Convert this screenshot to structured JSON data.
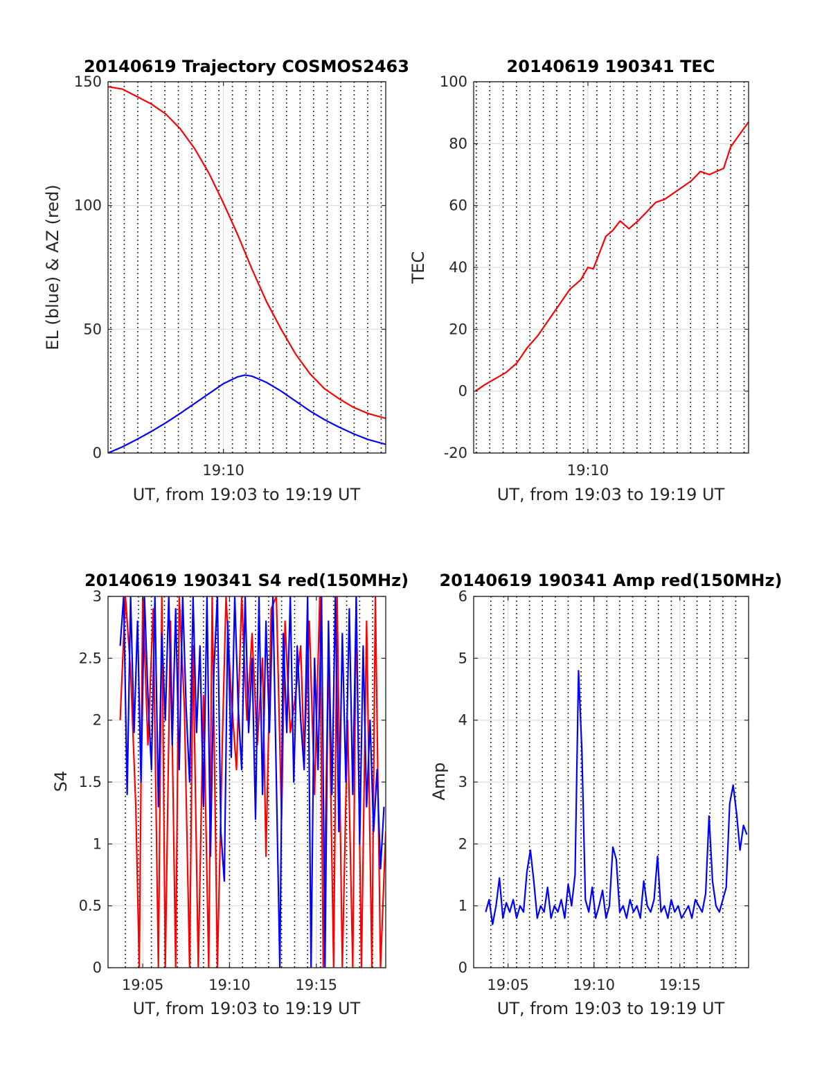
{
  "chart_data": [
    {
      "type": "line",
      "title": "20140619 Trajectory COSMOS2463",
      "xlabel": "UT, from 19:03 to 19:19 UT",
      "ylabel": "EL (blue) & AZ (red)",
      "x_unit": "minutes after 19:00 UT",
      "xlim": [
        3.6,
        19.0
      ],
      "ylim": [
        0,
        150
      ],
      "yticks": [
        0,
        50,
        100,
        150
      ],
      "ytick_labels": [
        "0",
        "50",
        "100",
        "150"
      ],
      "xticks": [
        10
      ],
      "xtick_labels": [
        "19:10"
      ],
      "grid": true,
      "series": [
        {
          "color": "#ff0000",
          "x": [
            3.6,
            4.4,
            5.2,
            6.0,
            6.8,
            7.6,
            8.4,
            9.2,
            10.0,
            10.8,
            11.6,
            12.4,
            13.2,
            14.0,
            14.8,
            15.6,
            16.4,
            17.2,
            18.0,
            19.0
          ],
          "y": [
            148,
            147,
            144,
            141,
            137,
            131,
            123,
            113,
            101,
            88,
            74,
            61,
            50,
            40,
            32,
            26,
            22,
            18.5,
            16,
            14
          ]
        },
        {
          "color": "#0000ff",
          "x": [
            3.6,
            4.4,
            5.2,
            6.0,
            6.8,
            7.6,
            8.4,
            9.2,
            10.0,
            10.8,
            11.2,
            11.6,
            12.4,
            13.2,
            14.0,
            14.8,
            15.6,
            16.4,
            17.2,
            18.0,
            19.0
          ],
          "y": [
            0,
            2.5,
            5.5,
            8.7,
            12.2,
            16,
            20,
            24,
            28,
            30.8,
            31.5,
            31,
            28.5,
            25,
            21,
            17,
            13.5,
            10.5,
            7.8,
            5.5,
            3.5
          ]
        }
      ]
    },
    {
      "type": "line",
      "title": "20140619 190341 TEC",
      "xlabel": "UT, from 19:03 to 19:19 UT",
      "ylabel": "TEC",
      "x_unit": "minutes after 19:00 UT",
      "xlim": [
        3.6,
        19.0
      ],
      "ylim": [
        -20,
        100
      ],
      "yticks": [
        -20,
        0,
        20,
        40,
        60,
        80,
        100
      ],
      "ytick_labels": [
        "-20",
        "0",
        "20",
        "40",
        "60",
        "80",
        "100"
      ],
      "xticks": [
        10
      ],
      "xtick_labels": [
        "19:10"
      ],
      "grid": true,
      "series": [
        {
          "color": "#ff0000",
          "x": [
            3.7,
            4.2,
            4.8,
            5.4,
            6.0,
            6.6,
            7.2,
            7.8,
            8.4,
            9.0,
            9.6,
            10.0,
            10.3,
            10.6,
            11.0,
            11.4,
            11.8,
            12.3,
            12.8,
            13.3,
            13.8,
            14.3,
            14.8,
            15.3,
            15.8,
            16.3,
            16.8,
            17.2,
            17.6,
            18.0,
            18.5,
            19.0
          ],
          "y": [
            0,
            2,
            4,
            6,
            9,
            14,
            18,
            23,
            28,
            33,
            36,
            40,
            39.5,
            44,
            50,
            52,
            55,
            52.5,
            55,
            58,
            61,
            62,
            64,
            66,
            68,
            71,
            70,
            71,
            72,
            79,
            83,
            87
          ]
        }
      ]
    },
    {
      "type": "line",
      "title": "20140619 190341 S4 red(150MHz)",
      "xlabel": "UT, from 19:03 to 19:19 UT",
      "ylabel": "S4",
      "x_unit": "minutes after 19:00 UT",
      "xlim": [
        3.0,
        19.0
      ],
      "ylim": [
        0,
        3
      ],
      "yticks": [
        0,
        0.5,
        1,
        1.5,
        2,
        2.5,
        3
      ],
      "ytick_labels": [
        "0",
        "0.5",
        "1",
        "1.5",
        "2",
        "2.5",
        "3"
      ],
      "xticks": [
        5,
        10,
        15
      ],
      "xtick_labels": [
        "19:05",
        "19:10",
        "19:15"
      ],
      "grid": true,
      "series": [
        {
          "color": "#ff0000",
          "x": [
            3.7,
            4.0,
            4.3,
            4.6,
            4.8,
            5.0,
            5.3,
            5.6,
            5.9,
            6.1,
            6.3,
            6.6,
            6.9,
            7.1,
            7.4,
            7.7,
            7.9,
            8.2,
            8.5,
            8.8,
            9.0,
            9.3,
            9.6,
            9.8,
            10.1,
            10.4,
            10.7,
            11.0,
            11.3,
            11.6,
            11.9,
            12.1,
            12.4,
            12.7,
            13.0,
            13.2,
            13.5,
            13.8,
            14.1,
            14.3,
            14.6,
            14.9,
            15.2,
            15.4,
            15.7,
            16.0,
            16.2,
            16.5,
            16.8,
            17.1,
            17.3,
            17.6,
            17.9,
            18.2,
            18.4,
            18.7,
            19.0
          ],
          "y": [
            2.0,
            3.0,
            2.4,
            1.3,
            0.0,
            3.0,
            1.8,
            2.9,
            0.0,
            3.0,
            0.0,
            2.8,
            0.0,
            3.0,
            2.1,
            0.0,
            2.6,
            0.0,
            2.2,
            0.0,
            3.0,
            0.0,
            1.9,
            3.0,
            2.2,
            1.6,
            3.0,
            2.0,
            2.7,
            1.8,
            2.5,
            0.9,
            2.9,
            3.0,
            1.2,
            2.8,
            1.9,
            2.2,
            2.6,
            1.7,
            2.8,
            1.4,
            3.0,
            0.0,
            2.6,
            0.0,
            3.0,
            0.0,
            2.0,
            0.0,
            3.0,
            0.0,
            2.8,
            0.0,
            3.0,
            0.0,
            1.1
          ]
        },
        {
          "color": "#0000ff",
          "x": [
            3.7,
            3.9,
            4.1,
            4.3,
            4.5,
            4.7,
            4.9,
            5.1,
            5.3,
            5.5,
            5.7,
            5.9,
            6.1,
            6.3,
            6.5,
            6.7,
            6.9,
            7.1,
            7.3,
            7.5,
            7.7,
            7.9,
            8.1,
            8.3,
            8.5,
            8.7,
            8.9,
            9.1,
            9.3,
            9.5,
            9.7,
            9.9,
            10.1,
            10.3,
            10.5,
            10.7,
            10.9,
            11.1,
            11.3,
            11.5,
            11.7,
            11.9,
            12.1,
            12.3,
            12.5,
            12.7,
            12.9,
            13.1,
            13.3,
            13.5,
            13.7,
            13.9,
            14.1,
            14.3,
            14.5,
            14.7,
            14.9,
            15.1,
            15.3,
            15.5,
            15.7,
            15.9,
            16.1,
            16.3,
            16.5,
            16.7,
            16.9,
            17.1,
            17.3,
            17.5,
            17.7,
            17.9,
            18.1,
            18.3,
            18.5,
            18.7,
            18.9
          ],
          "y": [
            2.6,
            3.0,
            1.4,
            3.0,
            1.9,
            2.8,
            1.5,
            3.0,
            2.2,
            1.6,
            3.0,
            1.3,
            2.7,
            2.0,
            3.0,
            1.8,
            2.9,
            1.6,
            3.0,
            2.1,
            1.5,
            3.0,
            1.9,
            2.6,
            1.3,
            3.0,
            0.9,
            2.4,
            3.0,
            1.1,
            0.7,
            2.8,
            1.7,
            3.0,
            2.1,
            1.6,
            3.0,
            1.9,
            2.5,
            1.2,
            3.0,
            1.4,
            2.8,
            1.9,
            3.0,
            1.5,
            0.0,
            2.7,
            1.9,
            3.0,
            1.5,
            2.6,
            2.0,
            1.6,
            3.0,
            0.0,
            2.5,
            1.6,
            3.0,
            0.0,
            2.8,
            1.4,
            3.0,
            1.1,
            2.7,
            1.5,
            2.9,
            1.4,
            3.0,
            1.0,
            2.6,
            1.3,
            2.0,
            1.1,
            1.6,
            0.8,
            1.3
          ]
        }
      ]
    },
    {
      "type": "line",
      "title": "20140619 190341 Amp red(150MHz)",
      "xlabel": "UT, from 19:03 to 19:19 UT",
      "ylabel": "Amp",
      "x_unit": "minutes after 19:00 UT",
      "xlim": [
        3.0,
        19.0
      ],
      "ylim": [
        0,
        6
      ],
      "yticks": [
        0,
        1,
        2,
        3,
        4,
        5,
        6
      ],
      "ytick_labels": [
        "0",
        "1",
        "2",
        "3",
        "4",
        "5",
        "6"
      ],
      "xticks": [
        5,
        10,
        15
      ],
      "xtick_labels": [
        "19:05",
        "19:10",
        "19:15"
      ],
      "grid": true,
      "series": [
        {
          "color": "#0000ff",
          "x": [
            3.7,
            3.9,
            4.1,
            4.3,
            4.5,
            4.7,
            4.9,
            5.1,
            5.3,
            5.5,
            5.7,
            5.9,
            6.1,
            6.3,
            6.5,
            6.7,
            6.9,
            7.1,
            7.3,
            7.5,
            7.7,
            7.9,
            8.1,
            8.3,
            8.5,
            8.7,
            8.9,
            9.1,
            9.3,
            9.5,
            9.7,
            9.9,
            10.1,
            10.3,
            10.5,
            10.7,
            10.9,
            11.1,
            11.3,
            11.5,
            11.7,
            11.9,
            12.1,
            12.3,
            12.5,
            12.7,
            12.9,
            13.1,
            13.3,
            13.5,
            13.7,
            13.9,
            14.1,
            14.3,
            14.5,
            14.7,
            14.9,
            15.1,
            15.3,
            15.5,
            15.7,
            15.9,
            16.1,
            16.3,
            16.5,
            16.7,
            16.9,
            17.1,
            17.3,
            17.5,
            17.7,
            17.9,
            18.1,
            18.3,
            18.5,
            18.7,
            18.9
          ],
          "y": [
            0.9,
            1.1,
            0.7,
            1.0,
            1.45,
            0.8,
            1.05,
            0.9,
            1.1,
            0.8,
            1.0,
            0.9,
            1.55,
            1.9,
            1.4,
            0.8,
            1.0,
            0.9,
            1.3,
            0.8,
            1.0,
            0.9,
            1.1,
            0.8,
            1.35,
            1.0,
            1.5,
            4.8,
            3.5,
            1.1,
            0.9,
            1.3,
            0.8,
            1.0,
            1.25,
            0.8,
            1.0,
            1.95,
            1.75,
            0.9,
            1.0,
            0.8,
            1.1,
            0.9,
            1.0,
            0.8,
            1.4,
            1.0,
            0.9,
            1.1,
            1.8,
            0.9,
            1.0,
            0.8,
            1.1,
            0.9,
            1.0,
            0.8,
            0.9,
            1.0,
            0.8,
            1.1,
            1.0,
            0.9,
            1.2,
            2.45,
            1.4,
            1.0,
            0.9,
            1.1,
            1.3,
            2.65,
            2.95,
            2.5,
            1.9,
            2.3,
            2.15
          ]
        }
      ]
    }
  ]
}
